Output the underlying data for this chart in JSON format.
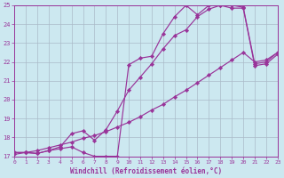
{
  "xlabel": "Windchill (Refroidissement éolien,°C)",
  "bg_color": "#cce8f0",
  "grid_color": "#aabbc8",
  "line_color": "#993399",
  "xlim": [
    0,
    23
  ],
  "ylim": [
    17,
    25
  ],
  "xticks": [
    0,
    1,
    2,
    3,
    4,
    5,
    6,
    7,
    8,
    9,
    10,
    11,
    12,
    13,
    14,
    15,
    16,
    17,
    18,
    19,
    20,
    21,
    22,
    23
  ],
  "yticks": [
    17,
    18,
    19,
    20,
    21,
    22,
    23,
    24,
    25
  ],
  "curve1_x": [
    0,
    1,
    2,
    3,
    4,
    5,
    6,
    7,
    8,
    9,
    10,
    11,
    12,
    13,
    14,
    15,
    16,
    17,
    18,
    19,
    20,
    21,
    22,
    23
  ],
  "curve1_y": [
    17.2,
    17.2,
    17.15,
    17.3,
    17.4,
    17.5,
    17.2,
    17.0,
    17.0,
    17.0,
    21.85,
    22.2,
    22.3,
    23.5,
    24.4,
    25.0,
    24.5,
    25.0,
    25.0,
    25.0,
    24.9,
    21.9,
    22.0,
    22.5
  ],
  "curve2_x": [
    0,
    1,
    2,
    3,
    4,
    5,
    6,
    7,
    8,
    9,
    10,
    11,
    12,
    13,
    14,
    15,
    16,
    17,
    18,
    19,
    20,
    21,
    22,
    23
  ],
  "curve2_y": [
    17.2,
    17.2,
    17.15,
    17.3,
    17.5,
    18.2,
    18.35,
    17.85,
    18.4,
    19.4,
    20.5,
    21.2,
    21.9,
    22.7,
    23.4,
    23.7,
    24.4,
    24.8,
    25.0,
    24.85,
    24.85,
    21.8,
    21.9,
    22.4
  ],
  "curve3_x": [
    0,
    1,
    2,
    3,
    4,
    5,
    6,
    7,
    8,
    9,
    10,
    11,
    12,
    13,
    14,
    15,
    16,
    17,
    18,
    19,
    20,
    21,
    22,
    23
  ],
  "curve3_y": [
    17.1,
    17.2,
    17.3,
    17.45,
    17.6,
    17.75,
    17.95,
    18.1,
    18.3,
    18.55,
    18.8,
    19.1,
    19.45,
    19.75,
    20.15,
    20.5,
    20.9,
    21.3,
    21.7,
    22.1,
    22.5,
    22.0,
    22.1,
    22.5
  ]
}
